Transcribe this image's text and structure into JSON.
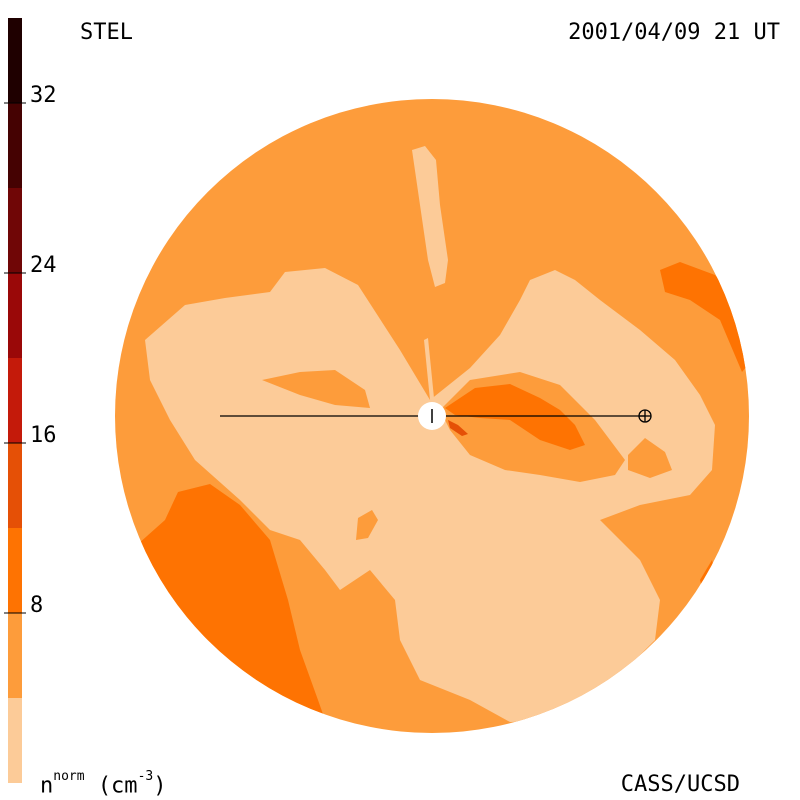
{
  "header": {
    "left_label": "STEL",
    "right_label": "2001/04/09 21 UT"
  },
  "footer": {
    "left_label_base": "n",
    "left_label_sup": "norm",
    "left_label_unit": "(cm",
    "left_label_unit_sup": "-3",
    "left_label_close": ")",
    "right_label": "CASS/UCSD"
  },
  "chart_data": {
    "type": "heatmap",
    "title": "",
    "colorbar": {
      "ticks": [
        8,
        16,
        24,
        32
      ],
      "tick_labels": [
        "8",
        "16",
        "24",
        "32"
      ],
      "range": [
        0,
        36
      ],
      "bands": [
        {
          "from": 0,
          "to": 4,
          "color": "#fccb98"
        },
        {
          "from": 4,
          "to": 8,
          "color": "#fd9c3b"
        },
        {
          "from": 8,
          "to": 12,
          "color": "#fe7302"
        },
        {
          "from": 12,
          "to": 16,
          "color": "#e55006"
        },
        {
          "from": 16,
          "to": 20,
          "color": "#c41a0a"
        },
        {
          "from": 20,
          "to": 24,
          "color": "#9a0808"
        },
        {
          "from": 24,
          "to": 28,
          "color": "#700606"
        },
        {
          "from": 28,
          "to": 32,
          "color": "#450202"
        },
        {
          "from": 32,
          "to": 36,
          "color": "#1f0000"
        }
      ]
    },
    "colors": {
      "level_0": "#fccb98",
      "level_1": "#fd9c3b",
      "level_2": "#fe7302",
      "level_3": "#e55006",
      "line": "#000000",
      "sun": "#ffffff"
    },
    "icons": [
      "sun-marker",
      "earth-marker",
      "sun-earth-line"
    ]
  }
}
